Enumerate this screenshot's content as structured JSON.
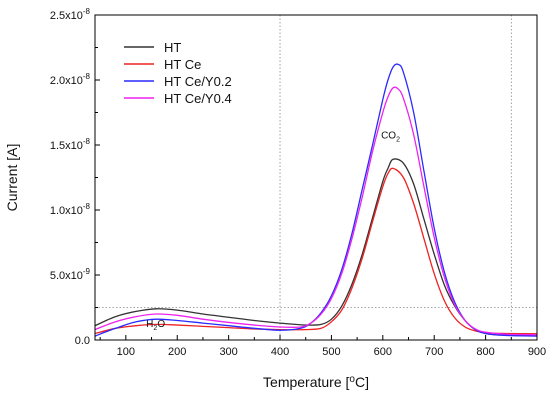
{
  "chart_data": {
    "type": "line",
    "xlabel": "Temperature [°C]",
    "ylabel": "Current [A]",
    "xlim": [
      40,
      900
    ],
    "ylim": [
      0,
      2.5e-08
    ],
    "xticks": [
      100,
      200,
      300,
      400,
      500,
      600,
      700,
      800,
      900
    ],
    "yticks": [
      {
        "value": 0,
        "label": "0.0"
      },
      {
        "value": 5e-09,
        "label": "5.0x10",
        "exp": "-9"
      },
      {
        "value": 1e-08,
        "label": "1.0x10",
        "exp": "-8"
      },
      {
        "value": 1.5e-08,
        "label": "1.5x10",
        "exp": "-8"
      },
      {
        "value": 2e-08,
        "label": "2.0x10",
        "exp": "-8"
      },
      {
        "value": 2.5e-08,
        "label": "2.5x10",
        "exp": "-8"
      }
    ],
    "legend_position": "top-left",
    "reference_lines": {
      "vertical": [
        400,
        850
      ],
      "horizontal": [
        2.5e-09
      ]
    },
    "annotations": [
      {
        "text": "H",
        "sub": "2",
        "rest": "O",
        "x": 158,
        "y": 1e-09
      },
      {
        "text": "CO",
        "sub": "2",
        "rest": "",
        "x": 615,
        "y": 1.55e-08
      }
    ],
    "series": [
      {
        "name": "HT",
        "color": "#333333",
        "x": [
          40,
          80,
          120,
          160,
          200,
          250,
          300,
          350,
          400,
          450,
          480,
          500,
          520,
          540,
          560,
          580,
          600,
          610,
          620,
          640,
          660,
          680,
          700,
          720,
          740,
          760,
          780,
          800,
          820,
          840,
          860,
          880,
          900
        ],
        "y": [
          1.1e-09,
          1.8e-09,
          2.2e-09,
          2.4e-09,
          2.3e-09,
          2e-09,
          1.75e-09,
          1.5e-09,
          1.3e-09,
          1.15e-09,
          1.2e-09,
          1.6e-09,
          2.6e-09,
          4.3e-09,
          6.6e-09,
          9.4e-09,
          1.22e-08,
          1.32e-08,
          1.39e-08,
          1.36e-08,
          1.2e-08,
          9.3e-09,
          6.6e-09,
          4.2e-09,
          2.6e-09,
          1.5e-09,
          8e-10,
          5e-10,
          4e-10,
          3.8e-10,
          3.5e-10,
          3.5e-10,
          3.5e-10
        ]
      },
      {
        "name": "HT Ce",
        "color": "#ee2222",
        "x": [
          40,
          80,
          120,
          160,
          200,
          250,
          300,
          350,
          400,
          450,
          480,
          500,
          520,
          540,
          560,
          580,
          600,
          610,
          620,
          640,
          660,
          680,
          700,
          720,
          740,
          760,
          780,
          800,
          840,
          900
        ],
        "y": [
          5e-10,
          9e-10,
          1.1e-09,
          1.2e-09,
          1.15e-09,
          1.05e-09,
          9.5e-10,
          8.5e-10,
          8e-10,
          8e-10,
          9e-10,
          1.4e-09,
          2.3e-09,
          4e-09,
          6.3e-09,
          9.1e-09,
          1.18e-08,
          1.28e-08,
          1.32e-08,
          1.25e-08,
          1.05e-08,
          7.8e-09,
          5.1e-09,
          3e-09,
          1.7e-09,
          1e-09,
          7e-10,
          5.5e-10,
          5e-10,
          4.8e-10
        ]
      },
      {
        "name": "HT Ce/Y0.2",
        "color": "#2a2aff",
        "x": [
          40,
          80,
          120,
          160,
          200,
          250,
          300,
          350,
          400,
          440,
          460,
          480,
          500,
          520,
          540,
          560,
          580,
          600,
          610,
          620,
          630,
          640,
          660,
          680,
          700,
          720,
          740,
          760,
          780,
          800,
          840,
          900
        ],
        "y": [
          3e-10,
          9e-10,
          1.4e-09,
          1.6e-09,
          1.5e-09,
          1.3e-09,
          1.1e-09,
          9e-10,
          7.5e-10,
          9e-10,
          1.3e-09,
          2.1e-09,
          3.4e-09,
          5.4e-09,
          8.2e-09,
          1.16e-08,
          1.5e-08,
          1.85e-08,
          2e-08,
          2.1e-08,
          2.12e-08,
          2.06e-08,
          1.75e-08,
          1.3e-08,
          8.6e-09,
          5.2e-09,
          2.9e-09,
          1.5e-09,
          8e-10,
          5e-10,
          3.5e-10,
          3e-10
        ]
      },
      {
        "name": "HT Ce/Y0.4",
        "color": "#ee22ee",
        "x": [
          40,
          80,
          120,
          160,
          200,
          250,
          300,
          350,
          400,
          440,
          460,
          480,
          500,
          520,
          540,
          560,
          580,
          600,
          610,
          620,
          630,
          640,
          660,
          680,
          700,
          720,
          740,
          760,
          780,
          800,
          840,
          900
        ],
        "y": [
          8e-10,
          1.4e-09,
          1.8e-09,
          2e-09,
          1.9e-09,
          1.6e-09,
          1.35e-09,
          1.15e-09,
          1e-09,
          1e-09,
          1.3e-09,
          2e-09,
          3.2e-09,
          5.1e-09,
          7.8e-09,
          1.1e-08,
          1.45e-08,
          1.75e-08,
          1.87e-08,
          1.94e-08,
          1.93e-08,
          1.86e-08,
          1.58e-08,
          1.18e-08,
          7.9e-09,
          4.8e-09,
          2.7e-09,
          1.5e-09,
          8.5e-10,
          6e-10,
          4.5e-10,
          4e-10
        ]
      }
    ]
  }
}
